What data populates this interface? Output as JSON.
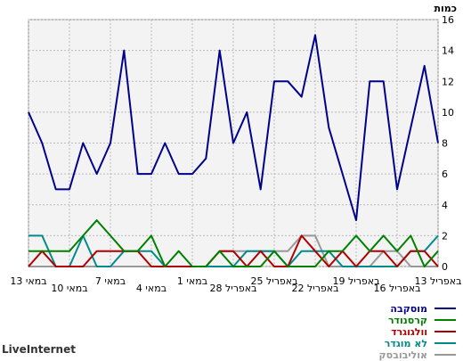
{
  "brand": "LiveInternet",
  "chart_data": {
    "type": "line",
    "ylabel": "כמות",
    "ylim": [
      0,
      16
    ],
    "yticks": [
      0,
      2,
      4,
      6,
      8,
      10,
      12,
      14,
      16
    ],
    "grid": true,
    "x_tick_labels": [
      {
        "label": "13 באפריל",
        "i": 31
      },
      {
        "label": "16 באפריל",
        "i": 28
      },
      {
        "label": "19 באפריל",
        "i": 25
      },
      {
        "label": "22 באפריל",
        "i": 22
      },
      {
        "label": "25 באפריל",
        "i": 19
      },
      {
        "label": "28 באפריל",
        "i": 16
      },
      {
        "label": "1 במאי",
        "i": 13
      },
      {
        "label": "4 במאי",
        "i": 10
      },
      {
        "label": "7 במאי",
        "i": 7
      },
      {
        "label": "10 במאי",
        "i": 4
      },
      {
        "label": "13 במאי",
        "i": 1
      }
    ],
    "series": [
      {
        "name": "מוסקבה",
        "color": "#00008b",
        "values": [
          10,
          8,
          5,
          5,
          8,
          6,
          8,
          14,
          6,
          6,
          8,
          6,
          6,
          7,
          14,
          8,
          10,
          5,
          12,
          12,
          11,
          15,
          9,
          6,
          3,
          12,
          12,
          5,
          9,
          13,
          8
        ]
      },
      {
        "name": "קרסנודר",
        "color": "#008000",
        "values": [
          1,
          1,
          1,
          1,
          2,
          3,
          2,
          1,
          1,
          2,
          0,
          1,
          0,
          0,
          1,
          0,
          0,
          0,
          1,
          0,
          0,
          0,
          1,
          1,
          2,
          1,
          2,
          1,
          2,
          0,
          1
        ]
      },
      {
        "name": "וולגוגרד",
        "color": "#b00000",
        "values": [
          0,
          1,
          0,
          0,
          0,
          1,
          1,
          1,
          1,
          0,
          0,
          0,
          0,
          0,
          1,
          1,
          0,
          1,
          0,
          0,
          2,
          1,
          0,
          1,
          0,
          1,
          1,
          0,
          1,
          1,
          0
        ]
      },
      {
        "name": "לא מוגדר",
        "color": "#008b8b",
        "values": [
          2,
          2,
          0,
          0,
          2,
          0,
          0,
          1,
          1,
          1,
          0,
          0,
          0,
          0,
          0,
          0,
          1,
          1,
          1,
          0,
          1,
          1,
          1,
          0,
          0,
          0,
          0,
          0,
          1,
          1,
          2
        ]
      },
      {
        "name": "אוליבובסק",
        "color": "#999999",
        "values": [
          0,
          0,
          0,
          0,
          0,
          0,
          0,
          0,
          0,
          0,
          0,
          0,
          0,
          0,
          1,
          1,
          1,
          1,
          1,
          1,
          2,
          2,
          0,
          0,
          0,
          0,
          1,
          1,
          0,
          0,
          0
        ]
      }
    ]
  }
}
